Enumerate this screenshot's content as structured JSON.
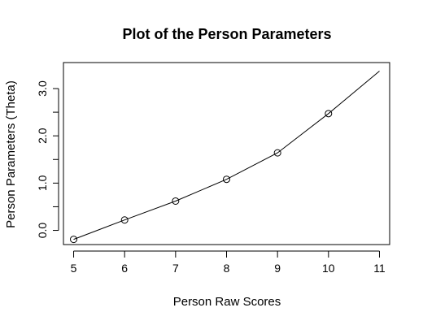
{
  "chart_data": {
    "type": "line",
    "title": "Plot of the Person Parameters",
    "xlabel": "Person Raw Scores",
    "ylabel": "Person Parameters (Theta)",
    "xlim": [
      4.8,
      11.2
    ],
    "ylim": [
      -0.3,
      3.55
    ],
    "xticks": [
      5,
      6,
      7,
      8,
      9,
      10,
      11
    ],
    "yticks": [
      0.0,
      1.0,
      2.0,
      3.0
    ],
    "ytick_labels": [
      "0.0",
      "1.0",
      "2.0",
      "3.0"
    ],
    "ytick_minor": [
      0.5,
      1.5,
      2.5
    ],
    "grid": false,
    "line": {
      "x": [
        5,
        6,
        7,
        8,
        9,
        10,
        11
      ],
      "y": [
        -0.19,
        0.22,
        0.62,
        1.08,
        1.64,
        2.47,
        3.37
      ]
    },
    "points": {
      "x": [
        5,
        6,
        7,
        8,
        9,
        10
      ],
      "y": [
        -0.19,
        0.22,
        0.62,
        1.08,
        1.64,
        2.47
      ]
    },
    "colors": {
      "line": "#000000",
      "points": "#000000"
    }
  }
}
